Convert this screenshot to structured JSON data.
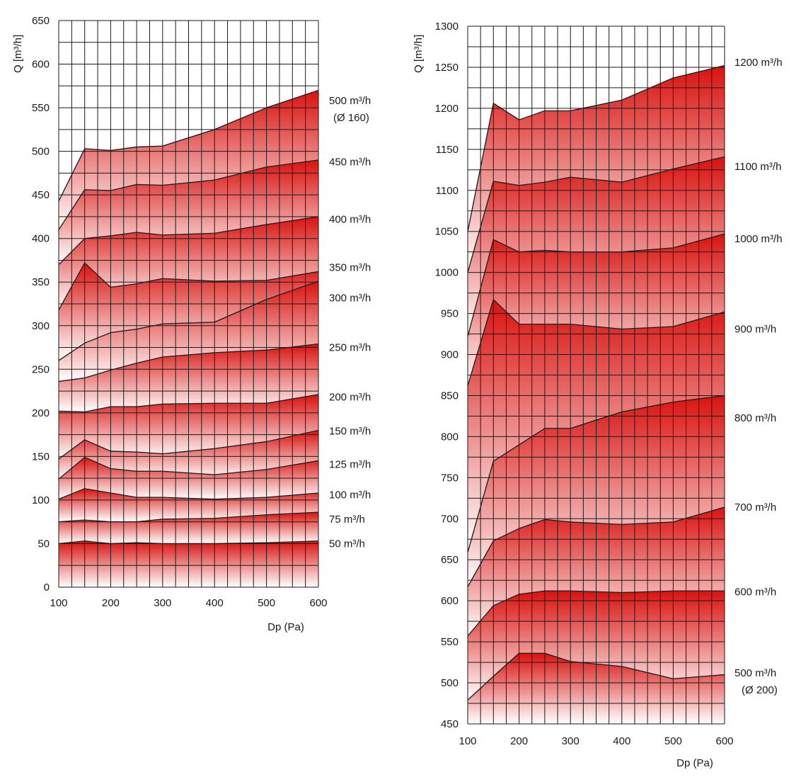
{
  "colors": {
    "band_top": "#d9120f",
    "band_bottom": "#ffffff",
    "grid": "#1a1a1a",
    "line": "#222222"
  },
  "chart_data": [
    {
      "type": "area",
      "ylabel": "Q [m³/h]",
      "xlabel": "Dp (Pa)",
      "xlim": [
        100,
        600
      ],
      "ylim": [
        0,
        650
      ],
      "xticks": [
        100,
        200,
        300,
        400,
        500,
        600
      ],
      "yticks": [
        0,
        50,
        100,
        150,
        200,
        250,
        300,
        350,
        400,
        450,
        500,
        550,
        600,
        650
      ],
      "grid": true,
      "grid_x_step": 25,
      "grid_y_step": 25,
      "x": [
        100,
        150,
        200,
        250,
        300,
        400,
        500,
        600
      ],
      "series": [
        {
          "name": "50 m³/h",
          "values": [
            50,
            53,
            50,
            51,
            50,
            50,
            51,
            53
          ]
        },
        {
          "name": "75 m³/h",
          "values": [
            75,
            77,
            75,
            75,
            78,
            79,
            83,
            86
          ]
        },
        {
          "name": "100 m³/h",
          "values": [
            101,
            113,
            108,
            103,
            103,
            101,
            103,
            108
          ]
        },
        {
          "name": "125 m³/h",
          "values": [
            124,
            149,
            136,
            133,
            133,
            129,
            135,
            145
          ]
        },
        {
          "name": "150 m³/h",
          "values": [
            147,
            169,
            156,
            155,
            153,
            159,
            167,
            180
          ]
        },
        {
          "name": "200 m³/h",
          "values": [
            202,
            201,
            207,
            207,
            210,
            211,
            211,
            221
          ]
        },
        {
          "name": "250 m³/h",
          "values": [
            236,
            240,
            249,
            257,
            264,
            269,
            272,
            279
          ]
        },
        {
          "name": "300 m³/h",
          "values": [
            260,
            280,
            292,
            296,
            302,
            304,
            330,
            351
          ]
        },
        {
          "name": "350 m³/h",
          "values": [
            318,
            372,
            344,
            348,
            354,
            351,
            352,
            362
          ]
        },
        {
          "name": "400 m³/h",
          "values": [
            370,
            400,
            403,
            407,
            404,
            406,
            416,
            425
          ]
        },
        {
          "name": "450 m³/h",
          "values": [
            410,
            456,
            455,
            462,
            461,
            467,
            482,
            490
          ]
        },
        {
          "name": "500 m³/h",
          "values": [
            443,
            503,
            501,
            505,
            506,
            525,
            550,
            570
          ]
        }
      ],
      "label_values": [
        50,
        78,
        106,
        141,
        179,
        218,
        275,
        332,
        367,
        422,
        488,
        558
      ],
      "sub_label": "(Ø 160)"
    },
    {
      "type": "area",
      "ylabel": "Q [m³/h]",
      "xlabel": "Dp (Pa)",
      "xlim": [
        100,
        600
      ],
      "ylim": [
        450,
        1300
      ],
      "xticks": [
        100,
        200,
        300,
        400,
        500,
        600
      ],
      "yticks": [
        450,
        500,
        550,
        600,
        650,
        700,
        750,
        800,
        850,
        900,
        950,
        1000,
        1050,
        1100,
        1150,
        1200,
        1250,
        1300
      ],
      "grid": true,
      "grid_x_step": 25,
      "grid_y_step": 25,
      "x": [
        100,
        150,
        200,
        250,
        300,
        400,
        500,
        600
      ],
      "series": [
        {
          "name": "500 m³/h",
          "values": [
            479,
            508,
            536,
            536,
            526,
            520,
            505,
            510
          ]
        },
        {
          "name": "600 m³/h",
          "values": [
            557,
            594,
            608,
            612,
            612,
            610,
            612,
            612
          ]
        },
        {
          "name": "700 m³/h",
          "values": [
            617,
            673,
            688,
            699,
            696,
            693,
            696,
            714
          ]
        },
        {
          "name": "800 m³/h",
          "values": [
            659,
            770,
            790,
            810,
            810,
            830,
            842,
            850
          ]
        },
        {
          "name": "900 m³/h",
          "values": [
            862,
            967,
            937,
            937,
            937,
            931,
            934,
            952
          ]
        },
        {
          "name": "1000 m³/h",
          "values": [
            922,
            1040,
            1025,
            1027,
            1025,
            1025,
            1030,
            1047
          ]
        },
        {
          "name": "1100 m³/h",
          "values": [
            1000,
            1111,
            1106,
            1110,
            1116,
            1110,
            1126,
            1141
          ]
        },
        {
          "name": "1200 m³/h",
          "values": [
            1050,
            1206,
            1186,
            1197,
            1197,
            1210,
            1237,
            1252
          ]
        }
      ],
      "label_values": [
        512,
        611,
        714,
        823,
        931,
        1041,
        1129,
        1256
      ],
      "sub_label": "(Ø 200)"
    }
  ]
}
